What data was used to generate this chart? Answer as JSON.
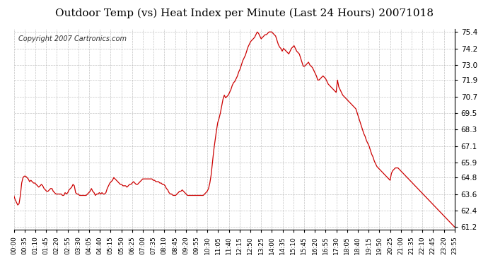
{
  "title": "Outdoor Temp (vs) Heat Index per Minute (Last 24 Hours) 20071018",
  "copyright": "Copyright 2007 Cartronics.com",
  "line_color": "#cc0000",
  "bg_color": "#ffffff",
  "grid_color": "#aaaaaa",
  "yticks": [
    61.2,
    62.4,
    63.6,
    64.8,
    65.9,
    67.1,
    68.3,
    69.5,
    70.7,
    71.9,
    73.0,
    74.2,
    75.4
  ],
  "ymin": 61.0,
  "ymax": 75.6,
  "xtick_labels": [
    "00:00",
    "00:35",
    "01:10",
    "01:45",
    "02:20",
    "02:55",
    "03:30",
    "04:05",
    "04:40",
    "05:15",
    "05:50",
    "06:25",
    "07:00",
    "07:35",
    "08:10",
    "08:45",
    "09:20",
    "09:55",
    "10:30",
    "11:05",
    "11:40",
    "12:15",
    "12:50",
    "13:25",
    "14:00",
    "14:35",
    "15:10",
    "15:45",
    "16:20",
    "16:55",
    "17:30",
    "18:05",
    "18:40",
    "19:15",
    "19:50",
    "20:25",
    "21:00",
    "21:35",
    "22:10",
    "22:45",
    "23:20",
    "23:55"
  ],
  "data_y": [
    63.5,
    63.2,
    63.0,
    62.8,
    62.9,
    63.5,
    64.4,
    64.8,
    64.9,
    64.9,
    64.8,
    64.7,
    64.5,
    64.6,
    64.5,
    64.4,
    64.4,
    64.3,
    64.2,
    64.1,
    64.2,
    64.3,
    64.2,
    64.0,
    63.9,
    63.8,
    63.8,
    63.9,
    64.0,
    64.0,
    63.8,
    63.7,
    63.6,
    63.6,
    63.6,
    63.6,
    63.6,
    63.5,
    63.5,
    63.7,
    63.6,
    63.7,
    63.9,
    64.0,
    64.1,
    64.3,
    64.2,
    63.7,
    63.6,
    63.6,
    63.5,
    63.5,
    63.5,
    63.5,
    63.5,
    63.5,
    63.6,
    63.7,
    63.8,
    64.0,
    63.8,
    63.7,
    63.5,
    63.6,
    63.6,
    63.7,
    63.6,
    63.7,
    63.6,
    63.6,
    63.7,
    64.0,
    64.2,
    64.4,
    64.5,
    64.6,
    64.8,
    64.7,
    64.6,
    64.5,
    64.4,
    64.3,
    64.3,
    64.2,
    64.2,
    64.2,
    64.1,
    64.2,
    64.3,
    64.3,
    64.4,
    64.5,
    64.4,
    64.3,
    64.3,
    64.4,
    64.5,
    64.6,
    64.7,
    64.7,
    64.7,
    64.7,
    64.7,
    64.7,
    64.7,
    64.7,
    64.6,
    64.6,
    64.5,
    64.5,
    64.5,
    64.4,
    64.4,
    64.3,
    64.3,
    64.2,
    64.0,
    63.9,
    63.7,
    63.6,
    63.6,
    63.5,
    63.5,
    63.5,
    63.6,
    63.7,
    63.8,
    63.8,
    63.9,
    63.8,
    63.7,
    63.6,
    63.5,
    63.5,
    63.5,
    63.5,
    63.5,
    63.5,
    63.5,
    63.5,
    63.5,
    63.5,
    63.5,
    63.5,
    63.5,
    63.6,
    63.7,
    63.8,
    64.0,
    64.4,
    65.0,
    65.9,
    66.8,
    67.5,
    68.2,
    68.8,
    69.1,
    69.5,
    70.0,
    70.5,
    70.8,
    70.6,
    70.7,
    70.8,
    71.0,
    71.2,
    71.5,
    71.7,
    71.8,
    72.0,
    72.2,
    72.5,
    72.7,
    73.0,
    73.3,
    73.5,
    73.7,
    74.0,
    74.3,
    74.5,
    74.7,
    74.8,
    74.9,
    75.0,
    75.2,
    75.4,
    75.3,
    75.1,
    74.9,
    75.0,
    75.1,
    75.2,
    75.2,
    75.3,
    75.4,
    75.4,
    75.4,
    75.3,
    75.2,
    75.1,
    74.8,
    74.5,
    74.3,
    74.2,
    74.0,
    74.2,
    74.1,
    74.0,
    73.9,
    73.8,
    74.0,
    74.2,
    74.3,
    74.4,
    74.2,
    74.0,
    73.9,
    73.8,
    73.5,
    73.2,
    72.9,
    72.9,
    73.0,
    73.1,
    73.2,
    73.0,
    72.9,
    72.8,
    72.6,
    72.4,
    72.2,
    71.9,
    71.9,
    72.0,
    72.1,
    72.2,
    72.1,
    72.0,
    71.8,
    71.6,
    71.5,
    71.4,
    71.3,
    71.2,
    71.1,
    71.0,
    71.9,
    71.4,
    71.2,
    71.0,
    70.8,
    70.7,
    70.6,
    70.5,
    70.4,
    70.3,
    70.2,
    70.1,
    70.0,
    69.9,
    69.8,
    69.5,
    69.2,
    68.9,
    68.6,
    68.3,
    68.0,
    67.8,
    67.5,
    67.3,
    67.1,
    66.8,
    66.5,
    66.3,
    66.0,
    65.8,
    65.6,
    65.5,
    65.4,
    65.3,
    65.2,
    65.1,
    65.0,
    64.9,
    64.8,
    64.7,
    64.6,
    65.1,
    65.3,
    65.4,
    65.5,
    65.5,
    65.5,
    65.4,
    65.3,
    65.2,
    65.1,
    65.0,
    64.9,
    64.8,
    64.7,
    64.6,
    64.5,
    64.4,
    64.3,
    64.2,
    64.1,
    64.0,
    63.9,
    63.8,
    63.7,
    63.6,
    63.5,
    63.4,
    63.3,
    63.2,
    63.1,
    63.0,
    62.9,
    62.8,
    62.7,
    62.6,
    62.5,
    62.4,
    62.3,
    62.2,
    62.1,
    62.0,
    61.9,
    61.8,
    61.7,
    61.6,
    61.5,
    61.4,
    61.3,
    61.2
  ]
}
